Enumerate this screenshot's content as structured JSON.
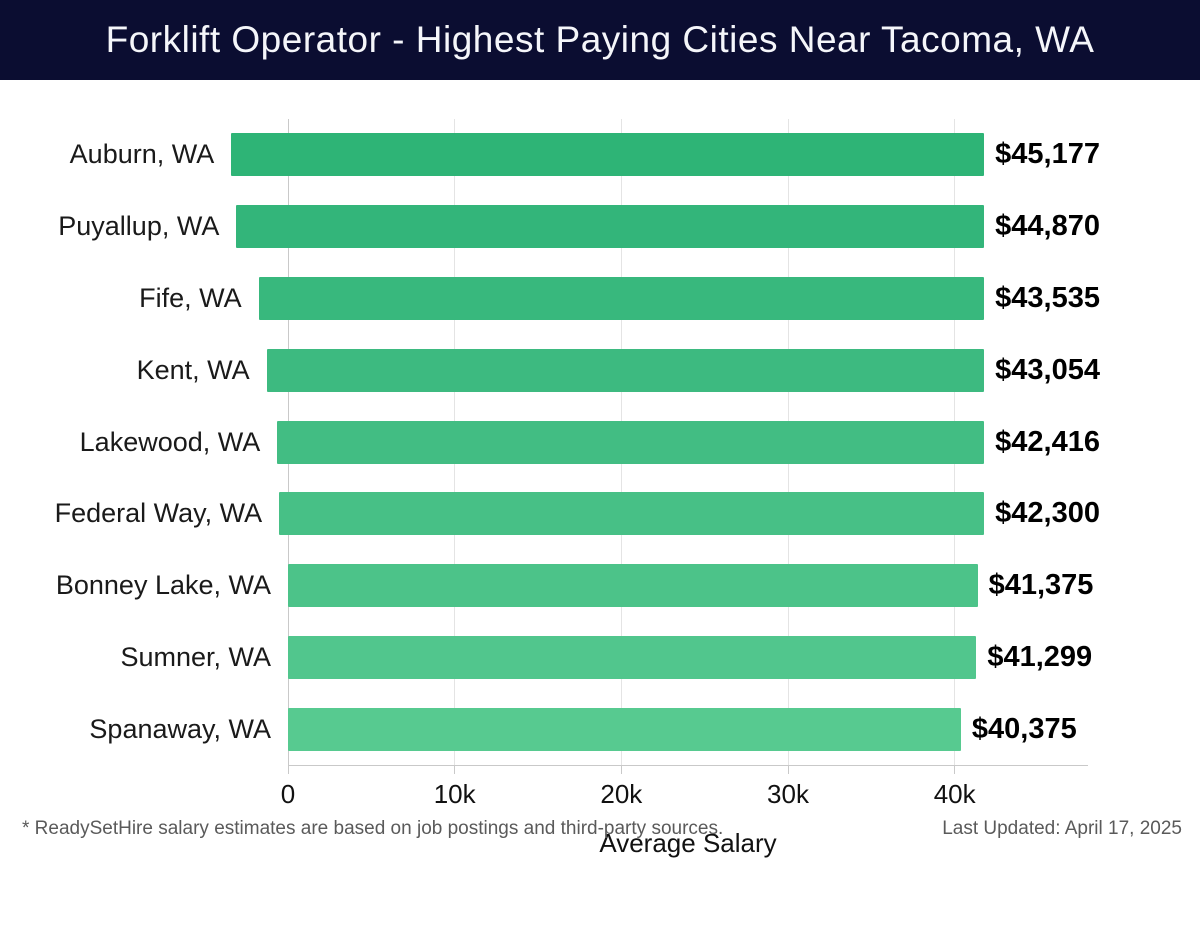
{
  "header": {
    "title": "Forklift Operator - Highest Paying Cities Near Tacoma, WA",
    "background_color": "#0b0d31",
    "text_color": "#f5f6fa"
  },
  "chart_data": {
    "type": "bar",
    "orientation": "horizontal",
    "title": "Forklift Operator - Highest Paying Cities Near Tacoma, WA",
    "xlabel": "Average Salary",
    "ylabel": "",
    "categories": [
      "Auburn, WA",
      "Puyallup, WA",
      "Fife, WA",
      "Kent, WA",
      "Lakewood, WA",
      "Federal Way, WA",
      "Bonney Lake, WA",
      "Sumner, WA",
      "Spanaway, WA"
    ],
    "values": [
      45177,
      44870,
      43535,
      43054,
      42416,
      42300,
      41375,
      41299,
      40375
    ],
    "value_labels": [
      "$45,177",
      "$44,870",
      "$43,535",
      "$43,054",
      "$42,416",
      "$42,300",
      "$41,375",
      "$41,299",
      "$40,375"
    ],
    "bar_colors": [
      "#2eb476",
      "#33b57a",
      "#38b87d",
      "#3dba80",
      "#42bd83",
      "#47c086",
      "#4cc389",
      "#51c68d",
      "#57ca90"
    ],
    "xlim": [
      0,
      48000
    ],
    "xticks": [
      {
        "value": 0,
        "label": "0"
      },
      {
        "value": 10000,
        "label": "10k"
      },
      {
        "value": 20000,
        "label": "20k"
      },
      {
        "value": 30000,
        "label": "30k"
      },
      {
        "value": 40000,
        "label": "40k"
      }
    ],
    "grid": "vertical",
    "gridline_color": "#e4e4e4",
    "axis_color": "#c9c9c9"
  },
  "footer": {
    "disclaimer": "* ReadySetHire salary estimates are based on job postings and third-party sources.",
    "last_updated": "Last Updated: April 17, 2025"
  }
}
